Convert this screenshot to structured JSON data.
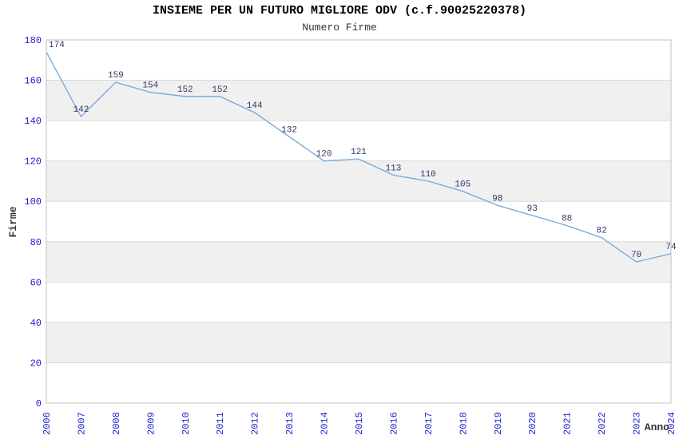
{
  "chart_data": {
    "type": "line",
    "title": "INSIEME PER UN FUTURO MIGLIORE ODV (c.f.90025220378)",
    "subtitle": "Numero Firme",
    "series_name": "Numero Firme",
    "x": [
      "2006",
      "2007",
      "2008",
      "2009",
      "2010",
      "2011",
      "2012",
      "2013",
      "2014",
      "2015",
      "2016",
      "2017",
      "2018",
      "2019",
      "2020",
      "2021",
      "2022",
      "2023",
      "2024"
    ],
    "values": [
      174,
      142,
      159,
      154,
      152,
      152,
      144,
      132,
      120,
      121,
      113,
      110,
      105,
      98,
      93,
      88,
      82,
      70,
      74
    ],
    "xlabel": "Anno",
    "ylabel": "Firme",
    "ylim": [
      0,
      180
    ],
    "yticks": [
      0,
      20,
      40,
      60,
      80,
      100,
      120,
      140,
      160,
      180
    ],
    "grid": "horizontal-bands-alternating",
    "legend": "none",
    "point_labels_visible": true,
    "x_tick_rotation_deg": -90
  },
  "colors": {
    "line": "#6fa8dc",
    "tick_label": "#2222cc",
    "data_label": "#333366",
    "band_gray": "#f0f0f0",
    "band_white": "#ffffff",
    "gridline": "#d9d9d9",
    "plot_border": "#c0c0c0",
    "axis_title": "#333333",
    "title": "#000000",
    "subtitle": "#333333"
  }
}
